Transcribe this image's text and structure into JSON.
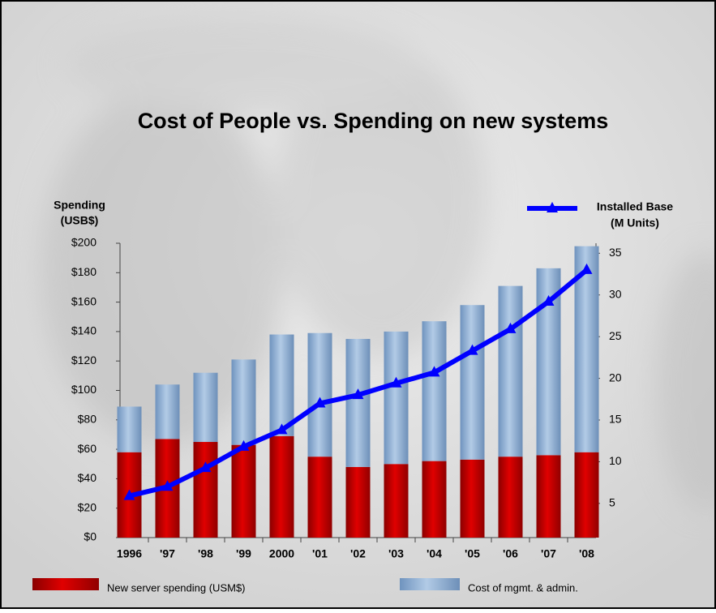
{
  "chart_data": {
    "type": "stacked_bar_line",
    "title": "Cost of People vs. Spending on new systems",
    "y_label": [
      "Spending",
      "(USB$)"
    ],
    "y2_label": "(M Units)",
    "categories": [
      "1996",
      "'97",
      "'98",
      "'99",
      "2000",
      "'01",
      "'02",
      "'03",
      "'04",
      "'05",
      "'06",
      "'07",
      "'08"
    ],
    "series": [
      {
        "name": "New server spending (USM$)",
        "color": "#cc0000",
        "type": "bar",
        "values": [
          58,
          67,
          65,
          63,
          69,
          55,
          48,
          50,
          52,
          53,
          55,
          56,
          58
        ]
      },
      {
        "name": "Cost of mgmt. & admin.",
        "color": "#8fb0d6",
        "type": "bar",
        "values": [
          31,
          37,
          47,
          58,
          69,
          84,
          87,
          90,
          95,
          105,
          116,
          127,
          140
        ]
      },
      {
        "name": "Installed Base",
        "color": "#0000ff",
        "type": "line",
        "axis": "y2",
        "values": [
          5.9,
          7.0,
          9.25,
          11.8,
          13.8,
          17.0,
          18.0,
          19.4,
          20.7,
          23.3,
          25.9,
          29.2,
          33.0
        ]
      }
    ],
    "ylim": [
      0,
      200
    ],
    "yticks": [
      {
        "value": 0,
        "label": "$0"
      },
      {
        "value": 20,
        "label": "$20"
      },
      {
        "value": 40,
        "label": "$40"
      },
      {
        "value": 60,
        "label": "$60"
      },
      {
        "value": 80,
        "label": "$80"
      },
      {
        "value": 100,
        "label": "$100"
      },
      {
        "value": 120,
        "label": "$120"
      },
      {
        "value": 140,
        "label": "$140"
      },
      {
        "value": 160,
        "label": "$160"
      },
      {
        "value": 180,
        "label": "$180"
      },
      {
        "value": 200,
        "label": "$200"
      }
    ],
    "y2lim": [
      0.9,
      36.2
    ],
    "y2ticks": [
      5,
      10,
      15,
      20,
      25,
      30,
      35
    ]
  }
}
